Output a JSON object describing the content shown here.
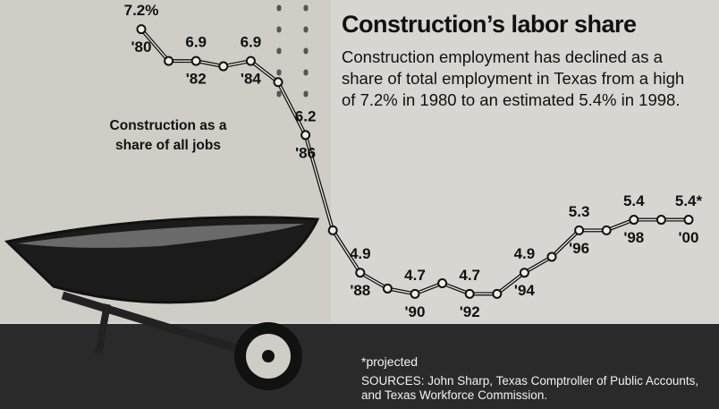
{
  "chart_data": {
    "type": "line",
    "title": "Construction’s labor share",
    "subtitle": "Construction employment has declined as a share of total employment in Texas from a high of 7.2% in 1980 to an estimated 5.4% in 1998.",
    "annotation": "Construction as a share of all jobs",
    "footnote": "*projected",
    "source": "SOURCES: John Sharp, Texas Comptroller of Public Accounts, and Texas Workforce Commission.",
    "x": [
      1980,
      1981,
      1982,
      1983,
      1984,
      1985,
      1986,
      1987,
      1988,
      1989,
      1990,
      1991,
      1992,
      1993,
      1994,
      1995,
      1996,
      1997,
      1998,
      1999,
      2000
    ],
    "series": [
      {
        "color": "#111111",
        "values": [
          7.2,
          6.9,
          6.9,
          6.85,
          6.9,
          6.7,
          6.2,
          5.3,
          4.9,
          4.75,
          4.7,
          4.8,
          4.7,
          4.7,
          4.9,
          5.05,
          5.3,
          5.3,
          5.4,
          5.4,
          5.4
        ],
        "value_labels": [
          "7.2%",
          null,
          "6.9",
          null,
          "6.9",
          null,
          "6.2",
          null,
          "4.9",
          null,
          "4.7",
          null,
          "4.7",
          null,
          "4.9",
          null,
          "5.3",
          null,
          "5.4",
          null,
          "5.4*"
        ]
      }
    ],
    "xlim": [
      1980,
      2000
    ],
    "ylim": [
      4.5,
      7.4
    ],
    "xticks": [
      {
        "value": 1980,
        "label": "'80"
      },
      {
        "value": 1982,
        "label": "'82"
      },
      {
        "value": 1984,
        "label": "'84"
      },
      {
        "value": 1986,
        "label": "'86"
      },
      {
        "value": 1988,
        "label": "'88"
      },
      {
        "value": 1990,
        "label": "'90"
      },
      {
        "value": 1992,
        "label": "'92"
      },
      {
        "value": 1994,
        "label": "'94"
      },
      {
        "value": 1996,
        "label": "'96"
      },
      {
        "value": 1998,
        "label": "'98"
      },
      {
        "value": 2000,
        "label": "'00"
      }
    ]
  }
}
